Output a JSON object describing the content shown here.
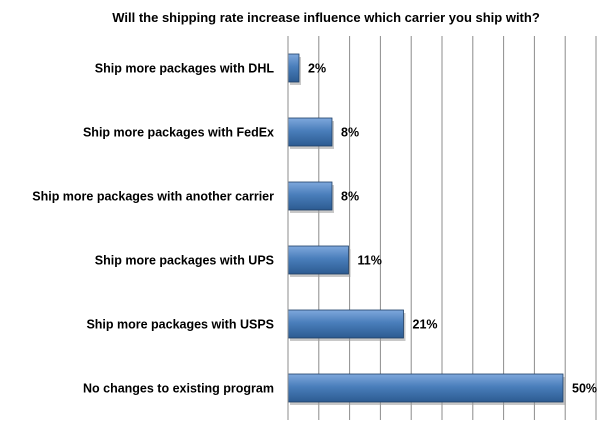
{
  "chart_data": {
    "type": "bar",
    "orientation": "horizontal",
    "title": "Will the shipping rate increase influence which carrier you ship with?",
    "categories": [
      "Ship more packages with DHL",
      "Ship more packages with FedEx",
      "Ship more packages with another carrier",
      "Ship more packages with UPS",
      "Ship more packages with USPS",
      "No changes to existing program"
    ],
    "values": [
      2,
      8,
      8,
      11,
      21,
      50
    ],
    "data_labels": [
      "2%",
      "8%",
      "8%",
      "11%",
      "21%",
      "50%"
    ],
    "xlim": [
      0,
      50
    ],
    "grid": true,
    "legend": "none",
    "colors": {
      "bar": "#4a7ebb",
      "bar_light": "#7fa8dc",
      "bar_dark": "#2c5b91",
      "bar_edge": "#1f3f66",
      "grid": "#8c8c8c"
    }
  }
}
